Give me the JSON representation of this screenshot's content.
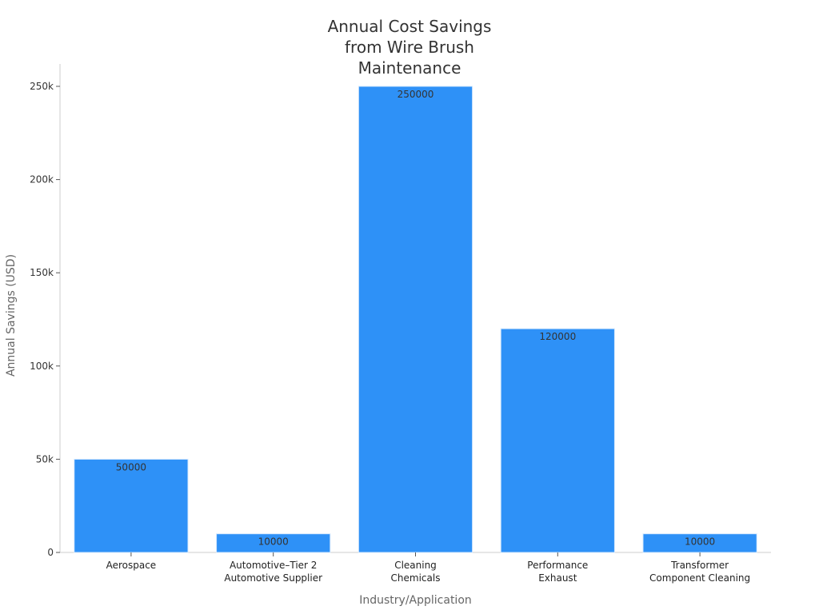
{
  "chart_data": {
    "type": "bar",
    "title_lines": [
      "Annual Cost Savings",
      "from Wire Brush",
      "Maintenance"
    ],
    "xlabel": "Industry/Application",
    "ylabel": "Annual Savings (USD)",
    "categories": [
      [
        "Aerospace"
      ],
      [
        "Automotive–Tier 2",
        "Automotive Supplier"
      ],
      [
        "Cleaning",
        "Chemicals"
      ],
      [
        "Performance",
        "Exhaust"
      ],
      [
        "Transformer",
        "Component Cleaning"
      ]
    ],
    "values": [
      50000,
      10000,
      250000,
      120000,
      10000
    ],
    "data_labels": [
      "50000",
      "10000",
      "250000",
      "120000",
      "10000"
    ],
    "ylim": [
      0,
      262000
    ],
    "yticks": [
      0,
      50000,
      100000,
      150000,
      200000,
      250000
    ],
    "ytick_labels": [
      "0",
      "50k",
      "100k",
      "150k",
      "200k",
      "250k"
    ],
    "bar_color": "#2e91f7",
    "grid": false,
    "legend": "none"
  }
}
